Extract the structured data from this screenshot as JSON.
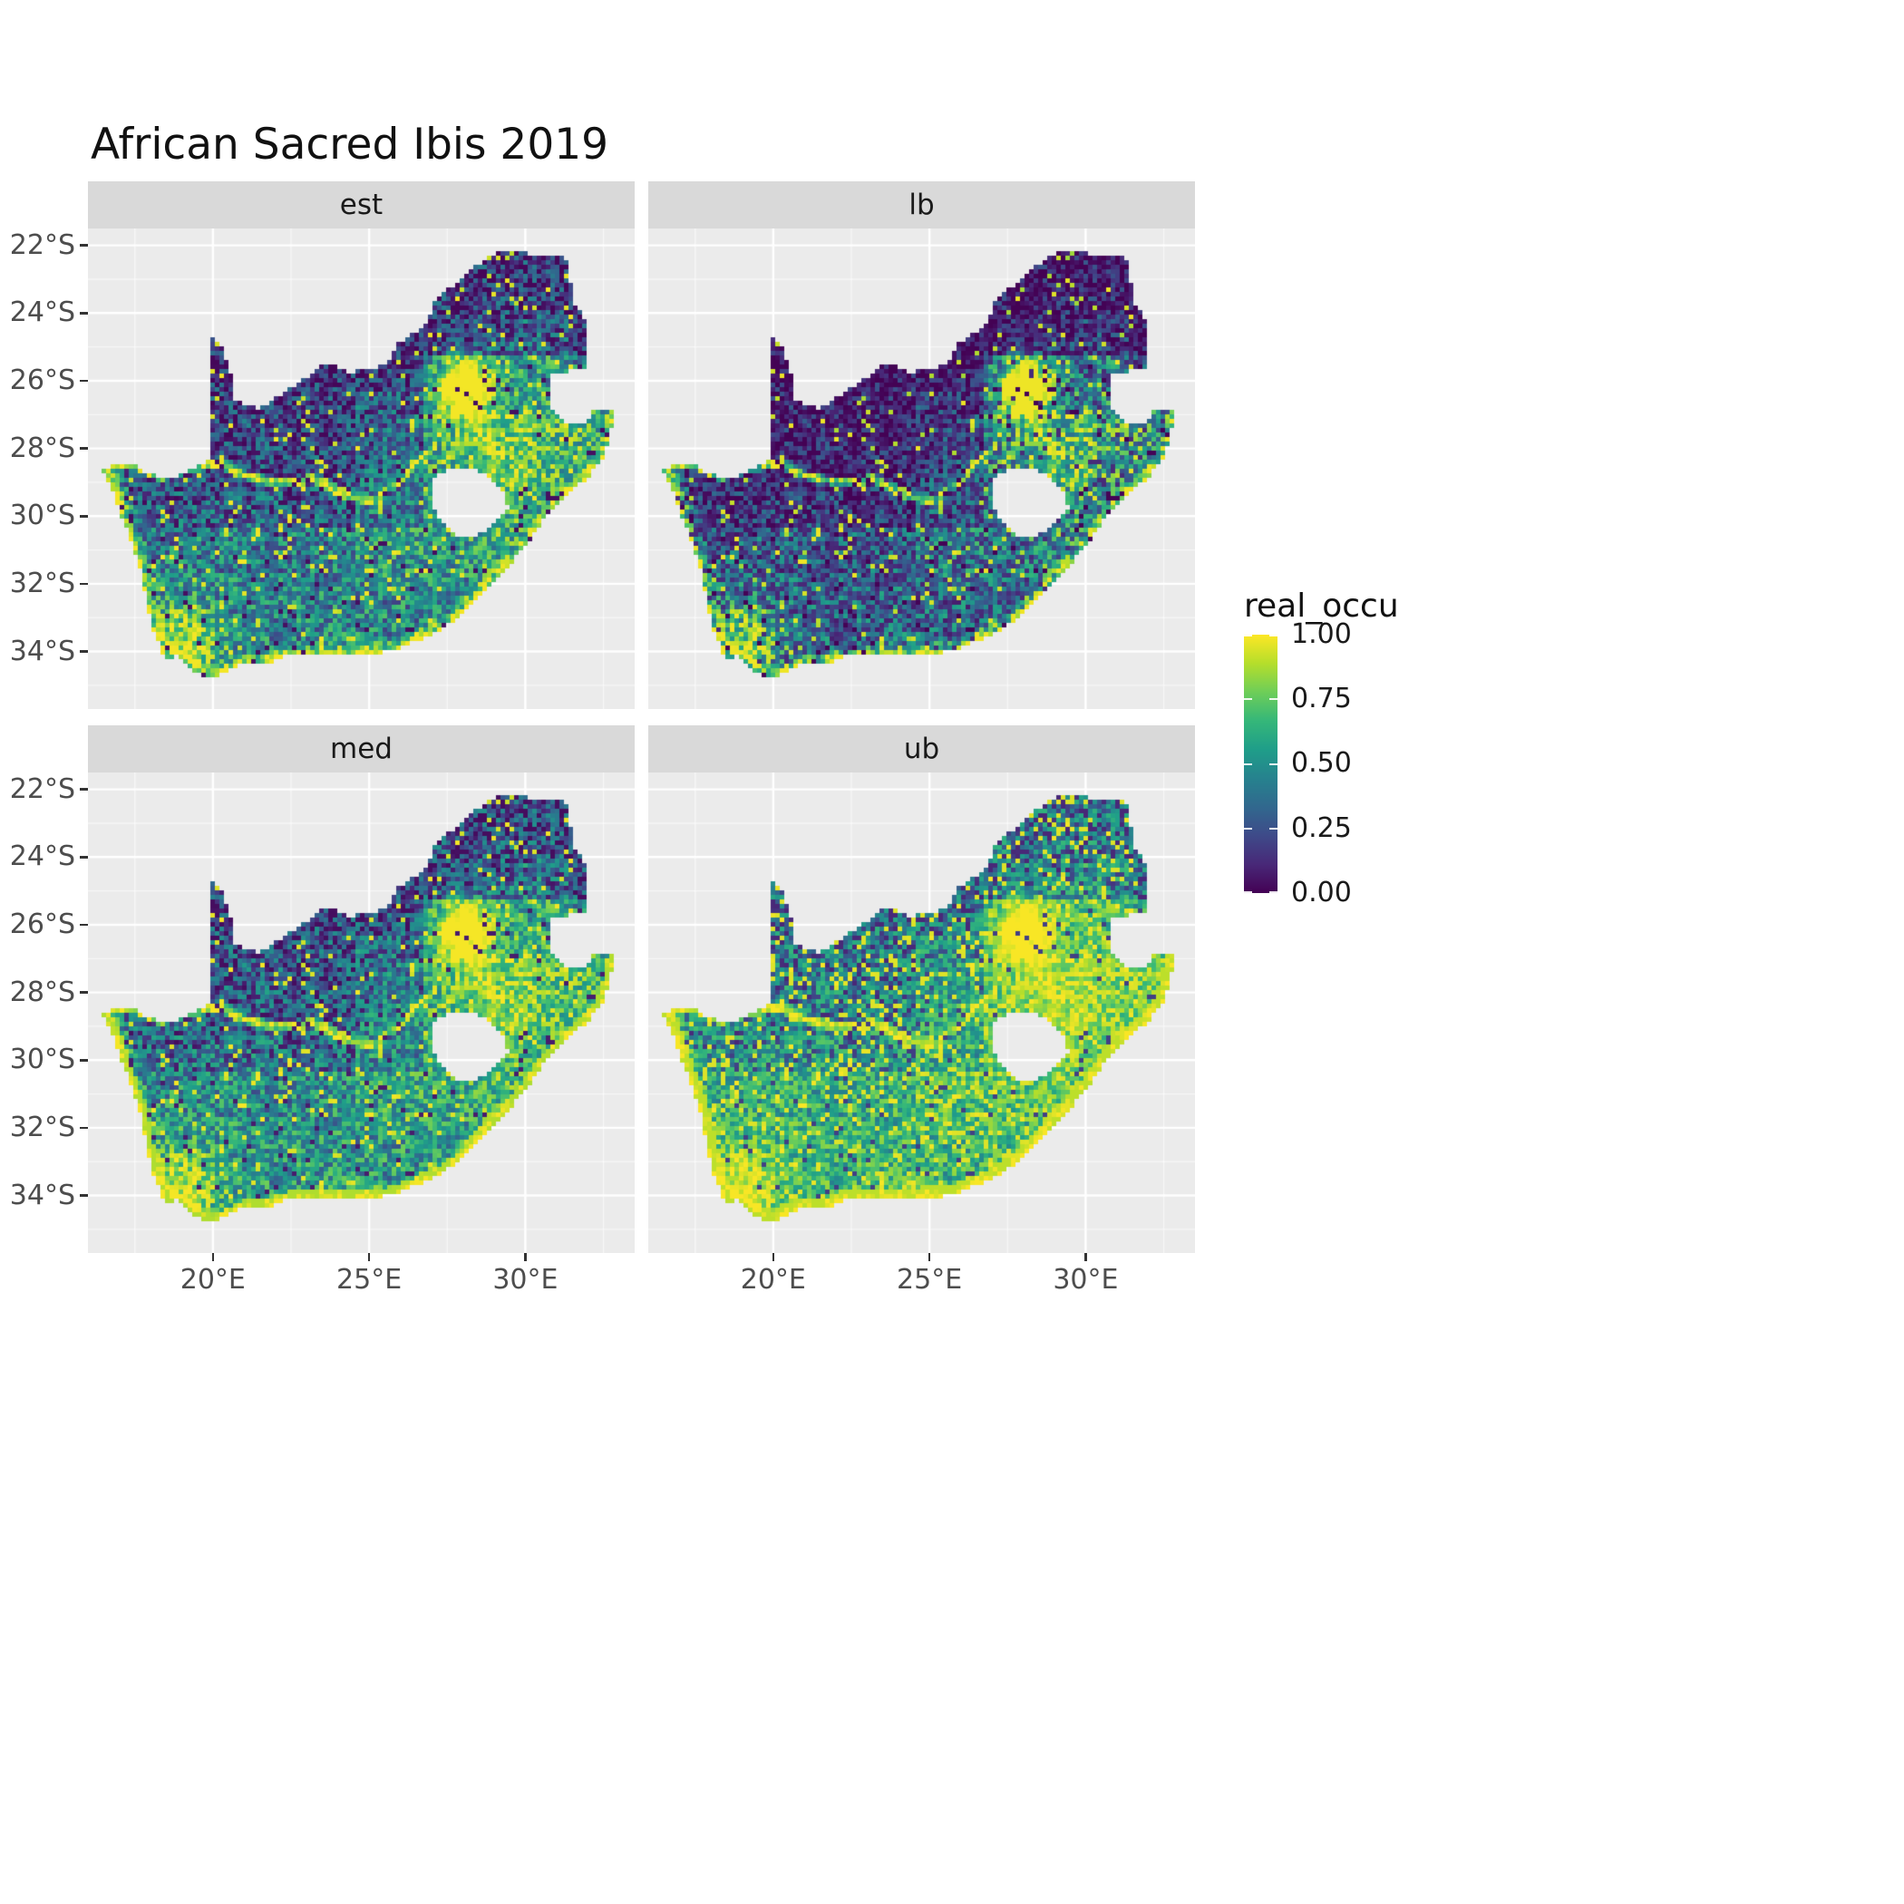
{
  "title": "African Sacred Ibis 2019",
  "facets": [
    {
      "id": "est",
      "label": "est"
    },
    {
      "id": "lb",
      "label": "lb"
    },
    {
      "id": "med",
      "label": "med"
    },
    {
      "id": "ub",
      "label": "ub"
    }
  ],
  "axes": {
    "x": {
      "ticks": [
        "20°E",
        "25°E",
        "30°E"
      ],
      "values": [
        20,
        25,
        30
      ],
      "range": [
        16.0,
        33.5
      ]
    },
    "y": {
      "ticks": [
        "22°S",
        "24°S",
        "26°S",
        "28°S",
        "30°S",
        "32°S",
        "34°S"
      ],
      "values": [
        -22,
        -24,
        -26,
        -28,
        -30,
        -32,
        -34
      ],
      "range": [
        -21.5,
        -35.7
      ]
    }
  },
  "legend": {
    "title": "real_occu",
    "labels": [
      "1.00",
      "0.75",
      "0.50",
      "0.25",
      "0.00"
    ],
    "values": [
      1.0,
      0.75,
      0.5,
      0.25,
      0.0
    ]
  },
  "colors": {
    "panel_bg": "#EBEBEB",
    "strip_bg": "#D9D9D9",
    "grid_major": "#FFFFFF",
    "axis_text": "#4D4D4D",
    "title_text": "#111111",
    "viridis": [
      "#440154",
      "#482878",
      "#3e4a89",
      "#31688e",
      "#26828e",
      "#1f9e89",
      "#35b779",
      "#6ece58",
      "#b5de2b",
      "#fde725"
    ]
  },
  "chart_data": {
    "type": "heatmap",
    "title": "African Sacred Ibis 2019",
    "facets": [
      "est",
      "lb",
      "med",
      "ub"
    ],
    "variable": "real_occu",
    "value_range": [
      0,
      1
    ],
    "region": "South Africa (Lesotho shown as hole, Eswatini notch on east)",
    "palette": "viridis",
    "legend_position": "right",
    "x_axis": {
      "tick_labels": [
        "20°E",
        "25°E",
        "30°E"
      ],
      "range_deg_east": [
        16.0,
        33.5
      ]
    },
    "y_axis": {
      "tick_labels": [
        "22°S",
        "24°S",
        "26°S",
        "28°S",
        "30°S",
        "32°S",
        "34°S"
      ],
      "range_deg": [
        -21.5,
        -35.7
      ]
    },
    "facet_gamma": {
      "est": 1.0,
      "lb": 1.55,
      "med": 0.8,
      "ub": 0.52
    },
    "features": [
      {
        "name": "gauteng-hotspot",
        "lon": 28.05,
        "lat": -26.15,
        "value": "~1.0 (bright yellow blob)"
      },
      {
        "name": "coastal-fringe",
        "value": "~0.9-1.0 yellow band along west, south and east coasts"
      },
      {
        "name": "orange-river-corridor",
        "value": "~0.9 yellow wavy line along north-west border"
      },
      {
        "name": "northwest-interior",
        "value": "~0.0-0.2 dark purple (Kalahari / Bushmanland)"
      },
      {
        "name": "limpopo-north",
        "value": "~0.0-0.2 dark purple with green speckle"
      },
      {
        "name": "central-east",
        "value": "~0.4-0.8 mixed teal/green with yellow speckle"
      }
    ]
  },
  "geometry": {
    "coast_start_index": 39,
    "south_africa": [
      [
        16.45,
        -28.58
      ],
      [
        17.3,
        -28.4
      ],
      [
        17.95,
        -28.78
      ],
      [
        18.75,
        -28.84
      ],
      [
        19.45,
        -28.55
      ],
      [
        19.98,
        -28.3
      ],
      [
        19.98,
        -24.77
      ],
      [
        20.35,
        -25.1
      ],
      [
        20.65,
        -26.0
      ],
      [
        20.68,
        -26.6
      ],
      [
        21.5,
        -26.85
      ],
      [
        22.3,
        -26.3
      ],
      [
        22.95,
        -25.95
      ],
      [
        23.65,
        -25.45
      ],
      [
        24.35,
        -25.73
      ],
      [
        25.1,
        -25.7
      ],
      [
        25.55,
        -25.5
      ],
      [
        25.9,
        -24.9
      ],
      [
        26.45,
        -24.6
      ],
      [
        26.85,
        -24.25
      ],
      [
        27.15,
        -23.55
      ],
      [
        27.75,
        -23.15
      ],
      [
        28.35,
        -22.65
      ],
      [
        29.1,
        -22.2
      ],
      [
        29.7,
        -22.15
      ],
      [
        30.4,
        -22.3
      ],
      [
        31.1,
        -22.35
      ],
      [
        31.3,
        -22.4
      ],
      [
        31.55,
        -23.65
      ],
      [
        31.98,
        -24.35
      ],
      [
        32.03,
        -25.35
      ],
      [
        31.95,
        -25.6
      ],
      [
        31.25,
        -25.75
      ],
      [
        30.82,
        -25.85
      ],
      [
        30.78,
        -26.75
      ],
      [
        31.05,
        -27.1
      ],
      [
        31.55,
        -27.3
      ],
      [
        31.97,
        -27.32
      ],
      [
        32.13,
        -26.86
      ],
      [
        32.89,
        -26.86
      ],
      [
        32.55,
        -28.2
      ],
      [
        32.05,
        -28.8
      ],
      [
        31.35,
        -29.4
      ],
      [
        30.65,
        -30.05
      ],
      [
        29.95,
        -30.95
      ],
      [
        29.25,
        -31.7
      ],
      [
        28.5,
        -32.35
      ],
      [
        27.85,
        -33.0
      ],
      [
        27.05,
        -33.5
      ],
      [
        26.3,
        -33.75
      ],
      [
        25.65,
        -34.02
      ],
      [
        24.85,
        -34.05
      ],
      [
        24.0,
        -34.1
      ],
      [
        23.3,
        -34.08
      ],
      [
        22.55,
        -34.05
      ],
      [
        21.75,
        -34.35
      ],
      [
        20.9,
        -34.4
      ],
      [
        20.0,
        -34.8
      ],
      [
        19.35,
        -34.62
      ],
      [
        18.85,
        -34.15
      ],
      [
        18.45,
        -34.3
      ],
      [
        18.3,
        -33.85
      ],
      [
        18.0,
        -33.1
      ],
      [
        17.85,
        -32.3
      ],
      [
        17.6,
        -31.3
      ],
      [
        17.15,
        -30.2
      ],
      [
        16.85,
        -29.35
      ]
    ],
    "lesotho_hole": [
      [
        27.05,
        -28.9
      ],
      [
        27.55,
        -28.58
      ],
      [
        28.3,
        -28.6
      ],
      [
        28.95,
        -28.9
      ],
      [
        29.35,
        -29.3
      ],
      [
        29.45,
        -29.8
      ],
      [
        29.05,
        -30.2
      ],
      [
        28.45,
        -30.6
      ],
      [
        27.8,
        -30.55
      ],
      [
        27.3,
        -30.15
      ],
      [
        27.0,
        -29.55
      ]
    ],
    "orange_river": [
      [
        16.5,
        -28.58
      ],
      [
        17.5,
        -28.5
      ],
      [
        18.3,
        -28.85
      ],
      [
        19.3,
        -28.6
      ],
      [
        20.2,
        -28.45
      ],
      [
        21.2,
        -28.85
      ],
      [
        22.2,
        -29.05
      ],
      [
        23.2,
        -28.9
      ],
      [
        24.2,
        -29.35
      ],
      [
        25.1,
        -29.6
      ]
    ],
    "vaal_river": [
      [
        25.1,
        -29.6
      ],
      [
        26.0,
        -28.9
      ],
      [
        26.9,
        -28.1
      ],
      [
        27.6,
        -27.3
      ],
      [
        28.1,
        -26.75
      ]
    ]
  }
}
